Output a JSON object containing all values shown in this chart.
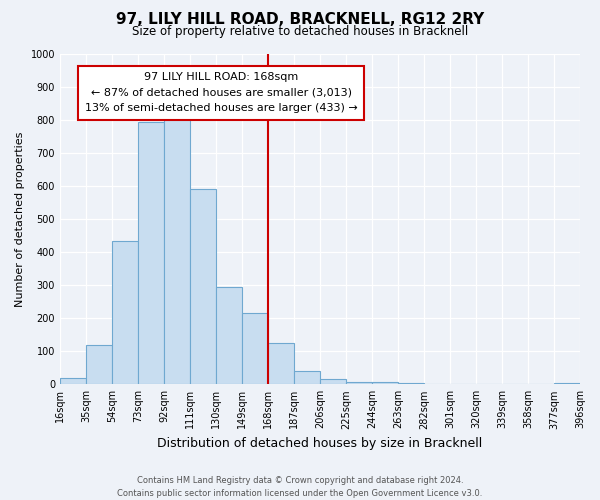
{
  "title": "97, LILY HILL ROAD, BRACKNELL, RG12 2RY",
  "subtitle": "Size of property relative to detached houses in Bracknell",
  "xlabel": "Distribution of detached houses by size in Bracknell",
  "ylabel": "Number of detached properties",
  "bin_edges": [
    16,
    35,
    54,
    73,
    92,
    111,
    130,
    149,
    168,
    187,
    206,
    225,
    244,
    263,
    282,
    301,
    320,
    339,
    358,
    377,
    396
  ],
  "bin_counts": [
    18,
    120,
    435,
    795,
    805,
    590,
    295,
    215,
    125,
    40,
    15,
    8,
    8,
    3,
    2,
    1,
    1,
    1,
    1,
    5
  ],
  "bar_color": "#c8ddf0",
  "bar_edge_color": "#6fa8d0",
  "property_line_x": 168,
  "property_line_color": "#cc0000",
  "annotation_title": "97 LILY HILL ROAD: 168sqm",
  "annotation_line1": "← 87% of detached houses are smaller (3,013)",
  "annotation_line2": "13% of semi-detached houses are larger (433) →",
  "annotation_box_color": "#ffffff",
  "annotation_box_edge_color": "#cc0000",
  "ylim": [
    0,
    1000
  ],
  "tick_labels": [
    "16sqm",
    "35sqm",
    "54sqm",
    "73sqm",
    "92sqm",
    "111sqm",
    "130sqm",
    "149sqm",
    "168sqm",
    "187sqm",
    "206sqm",
    "225sqm",
    "244sqm",
    "263sqm",
    "282sqm",
    "301sqm",
    "320sqm",
    "339sqm",
    "358sqm",
    "377sqm",
    "396sqm"
  ],
  "footer_line1": "Contains HM Land Registry data © Crown copyright and database right 2024.",
  "footer_line2": "Contains public sector information licensed under the Open Government Licence v3.0.",
  "background_color": "#eef2f8",
  "plot_bg_color": "#eef2f8",
  "grid_color": "#ffffff"
}
